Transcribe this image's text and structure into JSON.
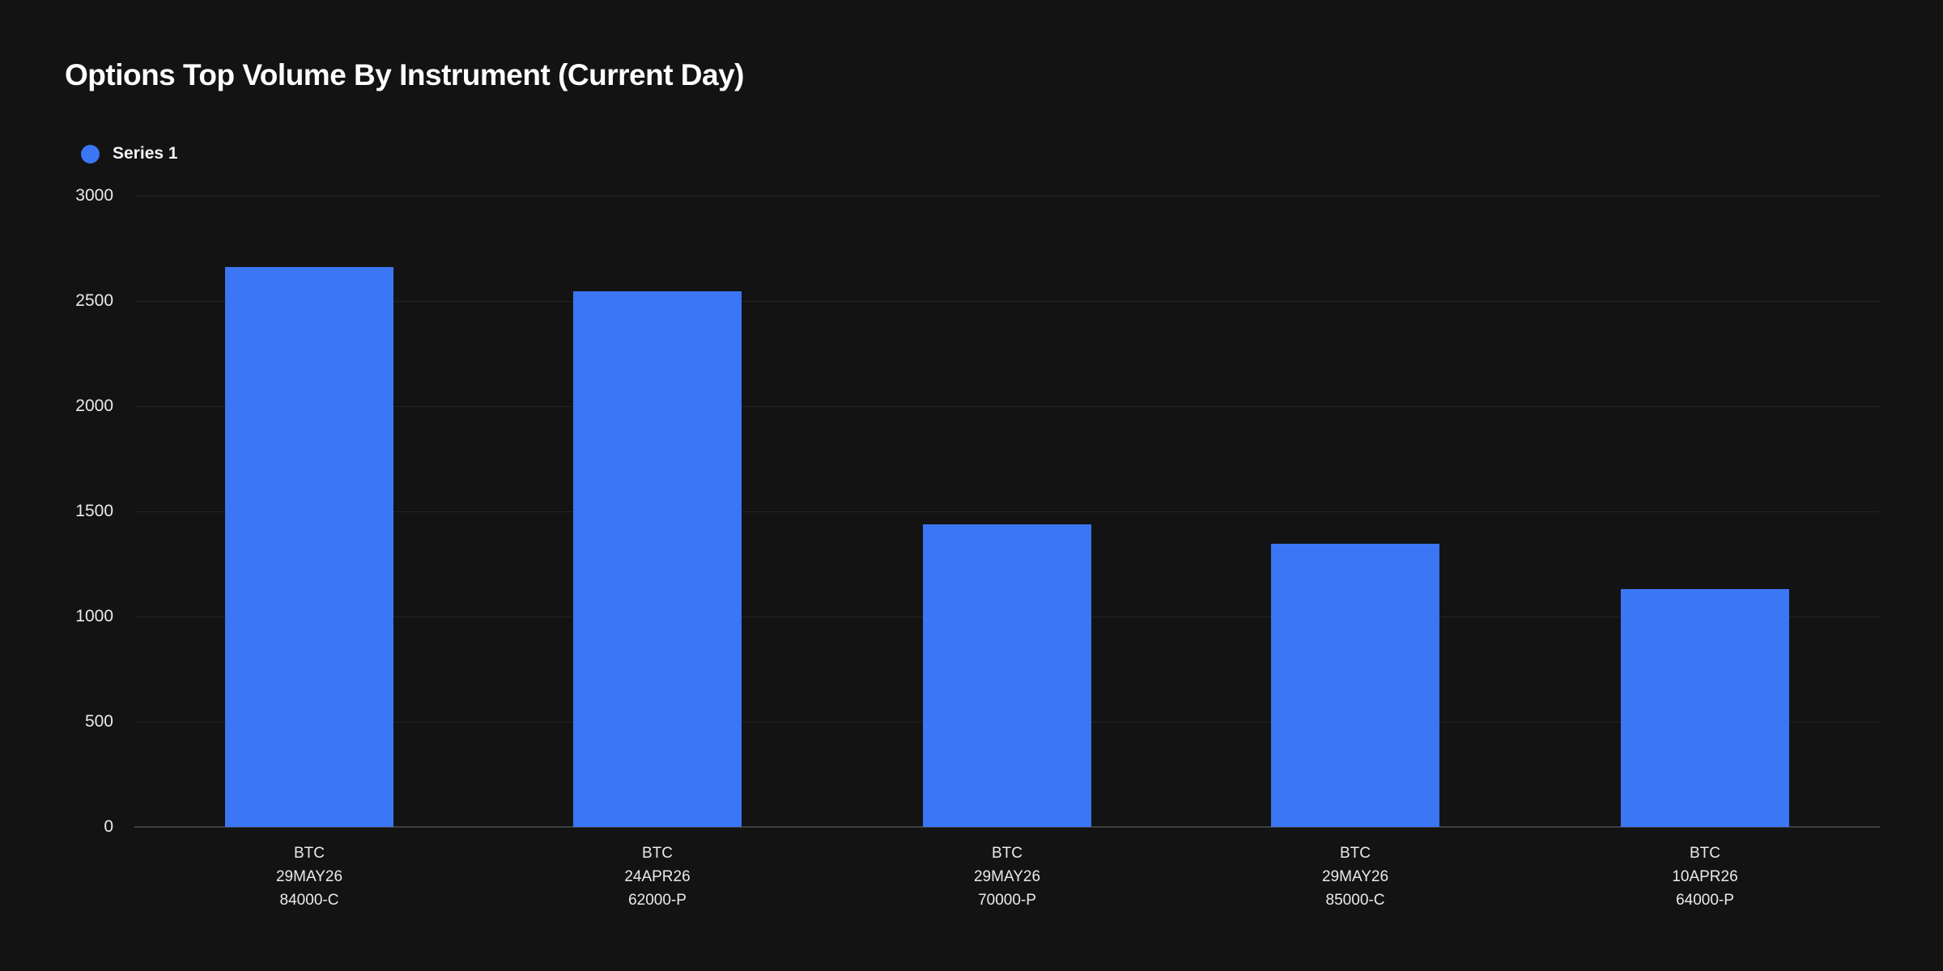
{
  "page": {
    "background": "#131313"
  },
  "header": {
    "title": "Options Top Volume By Instrument (Current Day)"
  },
  "legend": {
    "items": [
      {
        "label": "Series 1",
        "color": "#3b76f4"
      }
    ]
  },
  "chart_data": {
    "type": "bar",
    "title": "Options Top Volume By Instrument (Current Day)",
    "categories": [
      [
        "BTC",
        "29MAY26",
        "84000-C"
      ],
      [
        "BTC",
        "24APR26",
        "62000-P"
      ],
      [
        "BTC",
        "29MAY26",
        "70000-P"
      ],
      [
        "BTC",
        "29MAY26",
        "85000-C"
      ],
      [
        "BTC",
        "10APR26",
        "64000-P"
      ]
    ],
    "series": [
      {
        "name": "Series 1",
        "color": "#3b76f4",
        "values": [
          2660,
          2548,
          1440,
          1347,
          1130
        ]
      }
    ],
    "xlabel": "",
    "ylabel": "",
    "ylim": [
      0,
      3000
    ],
    "yticks": [
      0,
      500,
      1000,
      1500,
      2000,
      2500,
      3000
    ],
    "grid": "horizontal",
    "legend_position": "top-left",
    "colors": {
      "background": "#131313",
      "bar": "#3b76f4",
      "gridline": "#242424",
      "axis_line": "#3e3e3e",
      "tick_text": "#eaeaea",
      "title_text": "#ffffff"
    }
  }
}
